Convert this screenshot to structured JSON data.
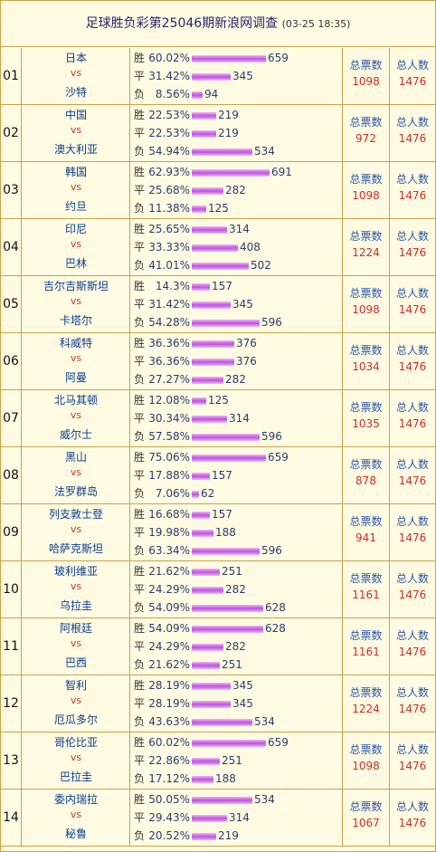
{
  "title": "足球胜负彩第25046期新浪网调查",
  "date": "(03-25 18:35)",
  "labels": {
    "win": "胜",
    "draw": "平",
    "lose": "负",
    "vs": "vs",
    "total_votes": "总票数",
    "total_people": "总人数"
  },
  "rows": [
    {
      "idx": "01",
      "home": "日本",
      "away": "沙特",
      "win_pct": "60.02%",
      "win": 659,
      "draw_pct": "31.42%",
      "draw": 345,
      "lose_pct": "8.56%",
      "lose": 94,
      "votes": "1098",
      "people": "1476"
    },
    {
      "idx": "02",
      "home": "中国",
      "away": "澳大利亚",
      "win_pct": "22.53%",
      "win": 219,
      "draw_pct": "22.53%",
      "draw": 219,
      "lose_pct": "54.94%",
      "lose": 534,
      "votes": "972",
      "people": "1476"
    },
    {
      "idx": "03",
      "home": "韩国",
      "away": "约旦",
      "win_pct": "62.93%",
      "win": 691,
      "draw_pct": "25.68%",
      "draw": 282,
      "lose_pct": "11.38%",
      "lose": 125,
      "votes": "1098",
      "people": "1476"
    },
    {
      "idx": "04",
      "home": "印尼",
      "away": "巴林",
      "win_pct": "25.65%",
      "win": 314,
      "draw_pct": "33.33%",
      "draw": 408,
      "lose_pct": "41.01%",
      "lose": 502,
      "votes": "1224",
      "people": "1476"
    },
    {
      "idx": "05",
      "home": "吉尔吉斯斯坦",
      "away": "卡塔尔",
      "win_pct": "14.3%",
      "win": 157,
      "draw_pct": "31.42%",
      "draw": 345,
      "lose_pct": "54.28%",
      "lose": 596,
      "votes": "1098",
      "people": "1476"
    },
    {
      "idx": "06",
      "home": "科威特",
      "away": "阿曼",
      "win_pct": "36.36%",
      "win": 376,
      "draw_pct": "36.36%",
      "draw": 376,
      "lose_pct": "27.27%",
      "lose": 282,
      "votes": "1034",
      "people": "1476"
    },
    {
      "idx": "07",
      "home": "北马其顿",
      "away": "威尔士",
      "win_pct": "12.08%",
      "win": 125,
      "draw_pct": "30.34%",
      "draw": 314,
      "lose_pct": "57.58%",
      "lose": 596,
      "votes": "1035",
      "people": "1476"
    },
    {
      "idx": "08",
      "home": "黑山",
      "away": "法罗群岛",
      "win_pct": "75.06%",
      "win": 659,
      "draw_pct": "17.88%",
      "draw": 157,
      "lose_pct": "7.06%",
      "lose": 62,
      "votes": "878",
      "people": "1476"
    },
    {
      "idx": "09",
      "home": "列支敦士登",
      "away": "哈萨克斯坦",
      "win_pct": "16.68%",
      "win": 157,
      "draw_pct": "19.98%",
      "draw": 188,
      "lose_pct": "63.34%",
      "lose": 596,
      "votes": "941",
      "people": "1476"
    },
    {
      "idx": "10",
      "home": "玻利维亚",
      "away": "乌拉圭",
      "win_pct": "21.62%",
      "win": 251,
      "draw_pct": "24.29%",
      "draw": 282,
      "lose_pct": "54.09%",
      "lose": 628,
      "votes": "1161",
      "people": "1476"
    },
    {
      "idx": "11",
      "home": "阿根廷",
      "away": "巴西",
      "win_pct": "54.09%",
      "win": 628,
      "draw_pct": "24.29%",
      "draw": 282,
      "lose_pct": "21.62%",
      "lose": 251,
      "votes": "1161",
      "people": "1476"
    },
    {
      "idx": "12",
      "home": "智利",
      "away": "厄瓜多尔",
      "win_pct": "28.19%",
      "win": 345,
      "draw_pct": "28.19%",
      "draw": 345,
      "lose_pct": "43.63%",
      "lose": 534,
      "votes": "1224",
      "people": "1476"
    },
    {
      "idx": "13",
      "home": "哥伦比亚",
      "away": "巴拉圭",
      "win_pct": "60.02%",
      "win": 659,
      "draw_pct": "22.86%",
      "draw": 251,
      "lose_pct": "17.12%",
      "lose": 188,
      "votes": "1098",
      "people": "1476"
    },
    {
      "idx": "14",
      "home": "委内瑞拉",
      "away": "秘鲁",
      "win_pct": "50.05%",
      "win": 534,
      "draw_pct": "29.43%",
      "draw": 314,
      "lose_pct": "20.52%",
      "lose": 219,
      "votes": "1067",
      "people": "1476"
    }
  ]
}
